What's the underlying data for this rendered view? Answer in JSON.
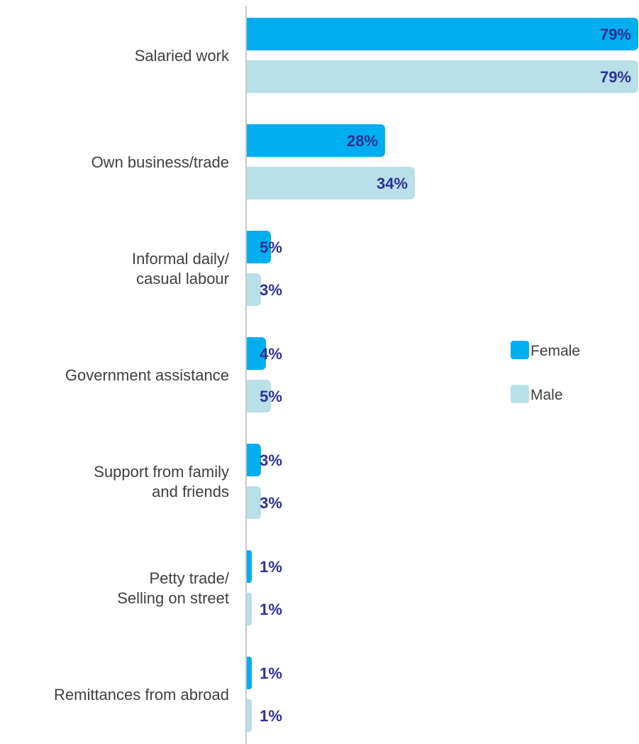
{
  "chart_data": {
    "type": "bar",
    "orientation": "horizontal",
    "categories": [
      [
        "Salaried work"
      ],
      [
        "Own business/trade"
      ],
      [
        "Informal daily/",
        "casual labour"
      ],
      [
        "Government assistance"
      ],
      [
        "Support from family",
        "and friends"
      ],
      [
        "Petty trade/",
        "Selling on street"
      ],
      [
        "Remittances from abroad"
      ]
    ],
    "series": [
      {
        "name": "Female",
        "color": "#00aeef",
        "values": [
          79,
          28,
          5,
          4,
          3,
          1,
          1
        ]
      },
      {
        "name": "Male",
        "color": "#b9dfe8",
        "values": [
          79,
          34,
          3,
          5,
          3,
          1,
          1
        ]
      }
    ],
    "value_suffix": "%",
    "xlim": [
      0,
      79
    ],
    "grid": false,
    "legend_position": "right"
  }
}
